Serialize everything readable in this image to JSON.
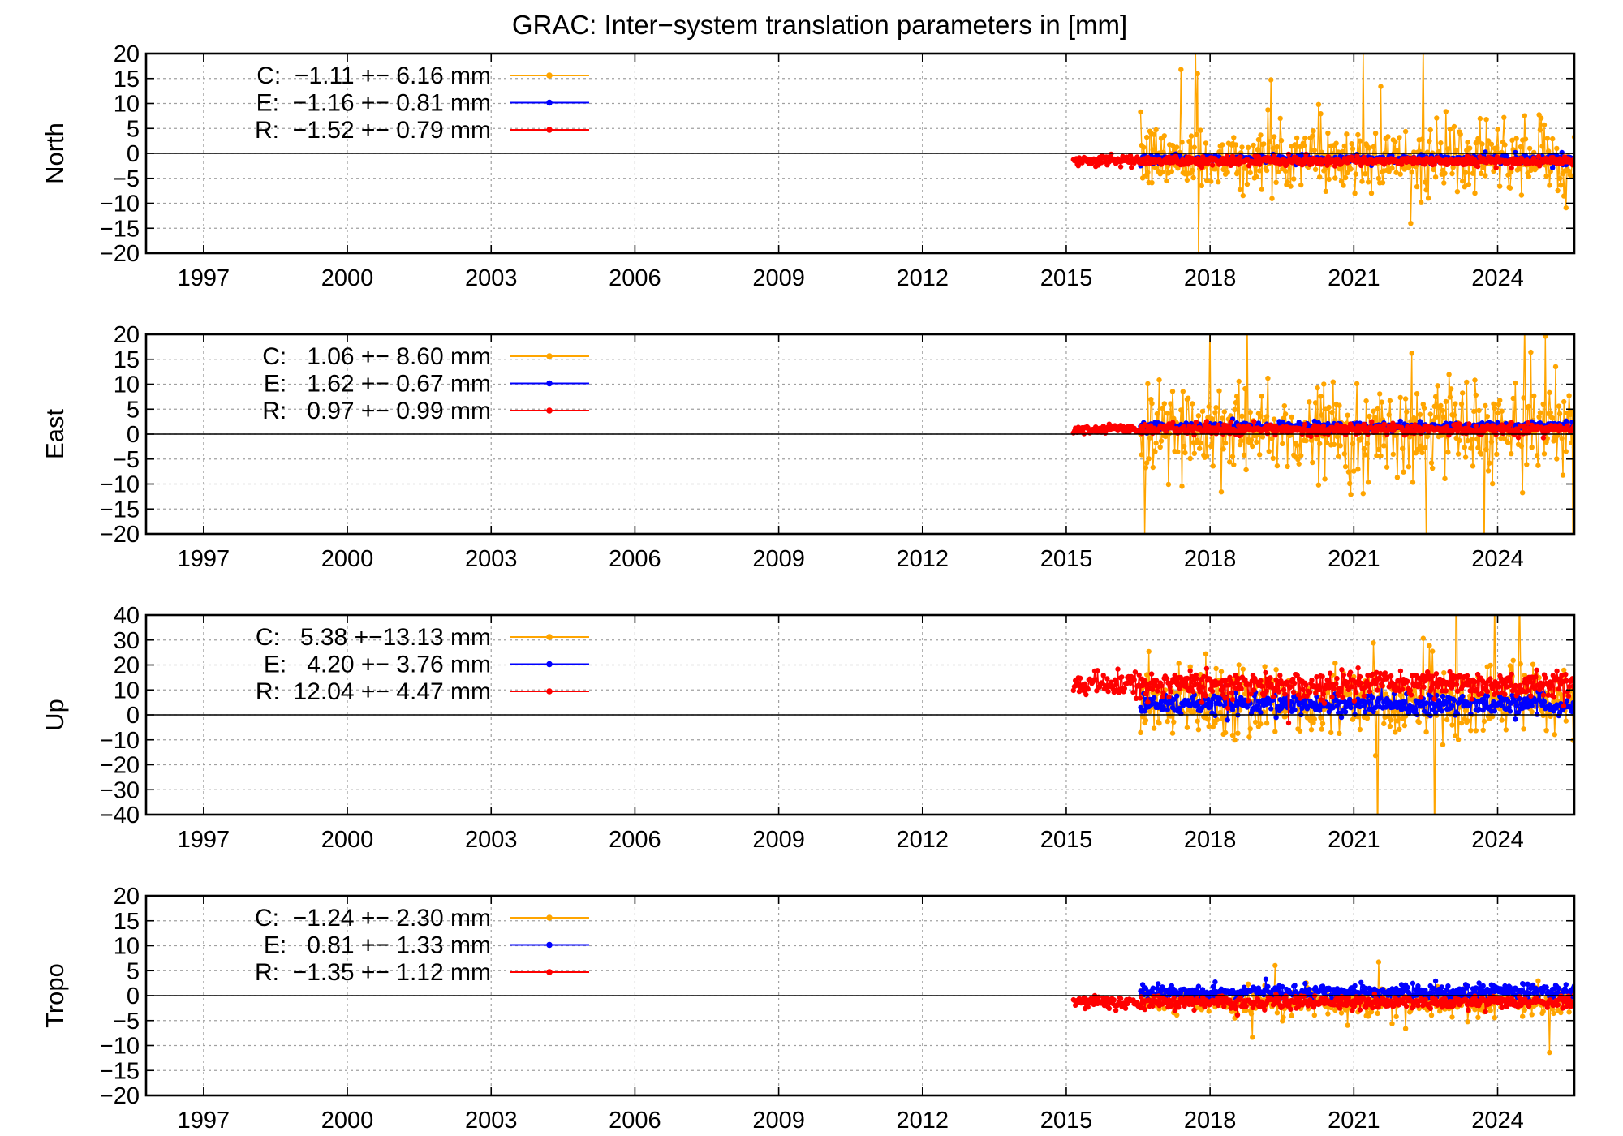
{
  "title": "GRAC: Inter−system translation parameters in [mm]",
  "colors": {
    "C": "#ffa500",
    "E": "#0000ff",
    "R": "#ff0000",
    "axis": "#000000",
    "grid": "#a0a0a0"
  },
  "chart_data": [
    {
      "type": "scatter",
      "ylabel": "North",
      "xlim": [
        1995.8,
        2025.6
      ],
      "ylim": [
        -20,
        20
      ],
      "xticks": [
        1997,
        2000,
        2003,
        2006,
        2009,
        2012,
        2015,
        2018,
        2021,
        2024
      ],
      "yticks": [
        -20,
        -15,
        -10,
        -5,
        0,
        5,
        10,
        15,
        20
      ],
      "grid": true,
      "legend_position": "top-left",
      "series": [
        {
          "name": "C",
          "color_key": "C",
          "x_start": 2016.55,
          "x_end": 2025.6,
          "mean": -1.11,
          "spread": 6.16,
          "legend": "C:  −1.11 +− 6.16 mm"
        },
        {
          "name": "E",
          "color_key": "E",
          "x_start": 2016.55,
          "x_end": 2025.6,
          "mean": -1.16,
          "spread": 0.81,
          "legend": "E:  −1.16 +− 0.81 mm"
        },
        {
          "name": "R",
          "color_key": "R",
          "x_start": 2015.15,
          "x_end": 2025.6,
          "mean": -1.52,
          "spread": 0.79,
          "legend": "R:  −1.52 +− 0.79 mm"
        }
      ]
    },
    {
      "type": "scatter",
      "ylabel": "East",
      "xlim": [
        1995.8,
        2025.6
      ],
      "ylim": [
        -20,
        20
      ],
      "xticks": [
        1997,
        2000,
        2003,
        2006,
        2009,
        2012,
        2015,
        2018,
        2021,
        2024
      ],
      "yticks": [
        -20,
        -15,
        -10,
        -5,
        0,
        5,
        10,
        15,
        20
      ],
      "grid": true,
      "legend_position": "top-left",
      "series": [
        {
          "name": "C",
          "color_key": "C",
          "x_start": 2016.55,
          "x_end": 2025.6,
          "mean": 1.06,
          "spread": 8.6,
          "legend": "C:   1.06 +− 8.60 mm"
        },
        {
          "name": "E",
          "color_key": "E",
          "x_start": 2016.55,
          "x_end": 2025.6,
          "mean": 1.62,
          "spread": 0.67,
          "legend": "E:   1.62 +− 0.67 mm"
        },
        {
          "name": "R",
          "color_key": "R",
          "x_start": 2015.15,
          "x_end": 2025.6,
          "mean": 0.97,
          "spread": 0.99,
          "legend": "R:   0.97 +− 0.99 mm"
        }
      ]
    },
    {
      "type": "scatter",
      "ylabel": "Up",
      "xlim": [
        1995.8,
        2025.6
      ],
      "ylim": [
        -40,
        40
      ],
      "xticks": [
        1997,
        2000,
        2003,
        2006,
        2009,
        2012,
        2015,
        2018,
        2021,
        2024
      ],
      "yticks": [
        -40,
        -30,
        -20,
        -10,
        0,
        10,
        20,
        30,
        40
      ],
      "grid": true,
      "legend_position": "top-left",
      "series": [
        {
          "name": "C",
          "color_key": "C",
          "x_start": 2016.55,
          "x_end": 2025.6,
          "mean": 5.38,
          "spread": 13.13,
          "legend": "C:   5.38 +−13.13 mm"
        },
        {
          "name": "E",
          "color_key": "E",
          "x_start": 2016.55,
          "x_end": 2025.6,
          "mean": 4.2,
          "spread": 3.76,
          "legend": "E:   4.20 +− 3.76 mm"
        },
        {
          "name": "R",
          "color_key": "R",
          "x_start": 2015.15,
          "x_end": 2025.6,
          "mean": 12.04,
          "spread": 4.47,
          "legend": "R:  12.04 +− 4.47 mm"
        }
      ]
    },
    {
      "type": "scatter",
      "ylabel": "Tropo",
      "xlim": [
        1995.8,
        2025.6
      ],
      "ylim": [
        -20,
        20
      ],
      "xticks": [
        1997,
        2000,
        2003,
        2006,
        2009,
        2012,
        2015,
        2018,
        2021,
        2024
      ],
      "yticks": [
        -20,
        -15,
        -10,
        -5,
        0,
        5,
        10,
        15,
        20
      ],
      "grid": true,
      "legend_position": "top-left",
      "series": [
        {
          "name": "C",
          "color_key": "C",
          "x_start": 2016.55,
          "x_end": 2025.6,
          "mean": -1.24,
          "spread": 2.3,
          "legend": "C:  −1.24 +− 2.30 mm"
        },
        {
          "name": "E",
          "color_key": "E",
          "x_start": 2016.55,
          "x_end": 2025.6,
          "mean": 0.81,
          "spread": 1.33,
          "legend": "E:   0.81 +− 1.33 mm"
        },
        {
          "name": "R",
          "color_key": "R",
          "x_start": 2015.15,
          "x_end": 2025.6,
          "mean": -1.35,
          "spread": 1.12,
          "legend": "R:  −1.35 +− 1.12 mm"
        }
      ]
    }
  ]
}
